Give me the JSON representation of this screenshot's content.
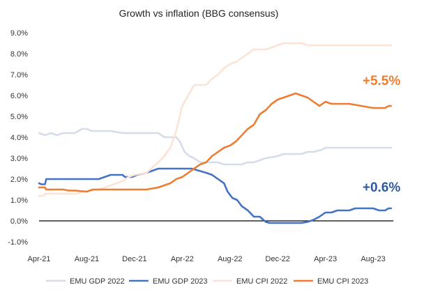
{
  "chart_data": {
    "type": "line",
    "title": "Growth vs inflation (BBG consensus)",
    "xlabel": "",
    "ylabel": "",
    "x_tick_labels": [
      "Apr-21",
      "Aug-21",
      "Dec-21",
      "Apr-22",
      "Aug-22",
      "Dec-22",
      "Apr-23",
      "Aug-23"
    ],
    "x_tick_index": [
      0,
      4,
      8,
      12,
      16,
      20,
      24,
      28
    ],
    "x_range": [
      0,
      29.8
    ],
    "ylim": [
      -1,
      9
    ],
    "y_tick_values": [
      -1,
      0,
      1,
      2,
      3,
      4,
      5,
      6,
      7,
      8,
      9
    ],
    "y_tick_labels": [
      "-1.0%",
      "0.0%",
      "1.0%",
      "2.0%",
      "3.0%",
      "4.0%",
      "5.0%",
      "6.0%",
      "7.0%",
      "8.0%",
      "9.0%"
    ],
    "grid": false,
    "zero_line": true,
    "legend_position": "bottom",
    "series": [
      {
        "name": "EMU GDP 2022",
        "color": "#d6dcea",
        "points": [
          [
            0,
            4.2
          ],
          [
            0.5,
            4.1
          ],
          [
            1,
            4.2
          ],
          [
            1.5,
            4.1
          ],
          [
            2,
            4.2
          ],
          [
            3,
            4.2
          ],
          [
            3.6,
            4.4
          ],
          [
            4,
            4.4
          ],
          [
            4.4,
            4.3
          ],
          [
            5,
            4.3
          ],
          [
            6,
            4.3
          ],
          [
            7,
            4.2
          ],
          [
            8,
            4.2
          ],
          [
            9,
            4.2
          ],
          [
            10,
            4.2
          ],
          [
            10.5,
            4.0
          ],
          [
            11.5,
            4.0
          ],
          [
            11.8,
            3.8
          ],
          [
            12.2,
            3.3
          ],
          [
            12.6,
            3.1
          ],
          [
            13,
            3.0
          ],
          [
            13.5,
            2.8
          ],
          [
            14,
            2.8
          ],
          [
            15,
            2.8
          ],
          [
            15.5,
            2.7
          ],
          [
            16,
            2.7
          ],
          [
            17,
            2.7
          ],
          [
            17.5,
            2.8
          ],
          [
            18,
            2.8
          ],
          [
            18.5,
            2.9
          ],
          [
            19,
            3.0
          ],
          [
            20,
            3.1
          ],
          [
            20.5,
            3.2
          ],
          [
            21,
            3.2
          ],
          [
            22,
            3.2
          ],
          [
            22.5,
            3.3
          ],
          [
            23,
            3.3
          ],
          [
            23.7,
            3.4
          ],
          [
            24,
            3.5
          ],
          [
            25,
            3.5
          ],
          [
            26,
            3.5
          ],
          [
            27,
            3.5
          ],
          [
            28,
            3.5
          ],
          [
            29.5,
            3.5
          ]
        ]
      },
      {
        "name": "EMU GDP 2023",
        "color": "#4472c4",
        "points": [
          [
            0,
            1.8
          ],
          [
            0.2,
            1.75
          ],
          [
            0.5,
            1.75
          ],
          [
            0.6,
            2.0
          ],
          [
            1,
            2.0
          ],
          [
            2,
            2.0
          ],
          [
            3,
            2.0
          ],
          [
            4,
            2.0
          ],
          [
            5,
            2.0
          ],
          [
            5.5,
            2.1
          ],
          [
            6,
            2.2
          ],
          [
            7,
            2.2
          ],
          [
            7.2,
            2.1
          ],
          [
            7.8,
            2.1
          ],
          [
            8.2,
            2.2
          ],
          [
            9,
            2.3
          ],
          [
            9.5,
            2.4
          ],
          [
            10,
            2.5
          ],
          [
            11,
            2.5
          ],
          [
            12,
            2.5
          ],
          [
            12.8,
            2.5
          ],
          [
            13.4,
            2.4
          ],
          [
            14,
            2.3
          ],
          [
            14.5,
            2.2
          ],
          [
            15,
            2.0
          ],
          [
            15.5,
            1.8
          ],
          [
            15.8,
            1.4
          ],
          [
            16.2,
            1.1
          ],
          [
            16.6,
            1.0
          ],
          [
            17,
            0.7
          ],
          [
            17.5,
            0.5
          ],
          [
            18,
            0.2
          ],
          [
            18.5,
            0.2
          ],
          [
            19,
            -0.05
          ],
          [
            19.3,
            -0.1
          ],
          [
            20,
            -0.1
          ],
          [
            21,
            -0.1
          ],
          [
            22,
            -0.1
          ],
          [
            22.5,
            -0.05
          ],
          [
            23,
            0.05
          ],
          [
            23.5,
            0.2
          ],
          [
            24,
            0.4
          ],
          [
            24.5,
            0.4
          ],
          [
            25,
            0.5
          ],
          [
            26,
            0.5
          ],
          [
            26.5,
            0.6
          ],
          [
            27,
            0.6
          ],
          [
            28,
            0.6
          ],
          [
            28.5,
            0.5
          ],
          [
            29,
            0.5
          ],
          [
            29.3,
            0.6
          ],
          [
            29.5,
            0.6
          ]
        ]
      },
      {
        "name": "EMU CPI 2022",
        "color": "#fbe3d6",
        "points": [
          [
            0,
            1.2
          ],
          [
            0.4,
            1.2
          ],
          [
            0.5,
            1.3
          ],
          [
            1,
            1.3
          ],
          [
            2,
            1.3
          ],
          [
            3,
            1.3
          ],
          [
            4,
            1.4
          ],
          [
            5,
            1.5
          ],
          [
            6,
            1.7
          ],
          [
            7,
            1.9
          ],
          [
            7.5,
            2.1
          ],
          [
            8,
            2.2
          ],
          [
            9,
            2.3
          ],
          [
            10,
            2.8
          ],
          [
            10.5,
            3.1
          ],
          [
            11,
            3.5
          ],
          [
            11.5,
            4.3
          ],
          [
            12,
            5.5
          ],
          [
            12.5,
            6.0
          ],
          [
            13,
            6.5
          ],
          [
            14,
            6.5
          ],
          [
            14.5,
            6.8
          ],
          [
            15,
            7.0
          ],
          [
            15.5,
            7.3
          ],
          [
            16,
            7.5
          ],
          [
            16.5,
            7.6
          ],
          [
            17,
            7.8
          ],
          [
            17.5,
            8.0
          ],
          [
            18,
            8.2
          ],
          [
            19,
            8.2
          ],
          [
            19.5,
            8.3
          ],
          [
            20,
            8.4
          ],
          [
            20.5,
            8.5
          ],
          [
            21,
            8.5
          ],
          [
            22,
            8.5
          ],
          [
            22.5,
            8.4
          ],
          [
            23,
            8.4
          ],
          [
            24,
            8.4
          ],
          [
            25,
            8.4
          ],
          [
            26,
            8.4
          ],
          [
            27,
            8.4
          ],
          [
            28,
            8.4
          ],
          [
            29.5,
            8.4
          ]
        ]
      },
      {
        "name": "EMU CPI 2023",
        "color": "#ed7d31",
        "points": [
          [
            0,
            1.6
          ],
          [
            0.5,
            1.6
          ],
          [
            0.6,
            1.5
          ],
          [
            1,
            1.5
          ],
          [
            2,
            1.5
          ],
          [
            2.5,
            1.45
          ],
          [
            3,
            1.45
          ],
          [
            4,
            1.4
          ],
          [
            4.5,
            1.5
          ],
          [
            5,
            1.5
          ],
          [
            6,
            1.5
          ],
          [
            7,
            1.5
          ],
          [
            8,
            1.5
          ],
          [
            9,
            1.5
          ],
          [
            10,
            1.6
          ],
          [
            10.5,
            1.7
          ],
          [
            11,
            1.8
          ],
          [
            11.5,
            2.0
          ],
          [
            12,
            2.1
          ],
          [
            12.5,
            2.3
          ],
          [
            13,
            2.5
          ],
          [
            13.5,
            2.7
          ],
          [
            14,
            2.8
          ],
          [
            14.5,
            3.1
          ],
          [
            15,
            3.3
          ],
          [
            15.5,
            3.5
          ],
          [
            16,
            3.6
          ],
          [
            16.5,
            3.8
          ],
          [
            17,
            4.1
          ],
          [
            17.5,
            4.4
          ],
          [
            18,
            4.6
          ],
          [
            18.5,
            5.1
          ],
          [
            19,
            5.3
          ],
          [
            19.5,
            5.6
          ],
          [
            20,
            5.8
          ],
          [
            20.5,
            5.9
          ],
          [
            21,
            6.0
          ],
          [
            21.5,
            6.1
          ],
          [
            22,
            6.0
          ],
          [
            22.5,
            5.9
          ],
          [
            23,
            5.7
          ],
          [
            23.5,
            5.5
          ],
          [
            24,
            5.7
          ],
          [
            24.5,
            5.6
          ],
          [
            25,
            5.6
          ],
          [
            26,
            5.6
          ],
          [
            27,
            5.5
          ],
          [
            28,
            5.4
          ],
          [
            29,
            5.4
          ],
          [
            29.3,
            5.5
          ],
          [
            29.5,
            5.5
          ]
        ]
      }
    ],
    "annotations": [
      {
        "text": "+5.5%",
        "color": "#ed7d31",
        "x": 28.7,
        "y": 6.5
      },
      {
        "text": "+0.6%",
        "color": "#2e5a9e",
        "x": 28.7,
        "y": 1.4
      }
    ]
  }
}
